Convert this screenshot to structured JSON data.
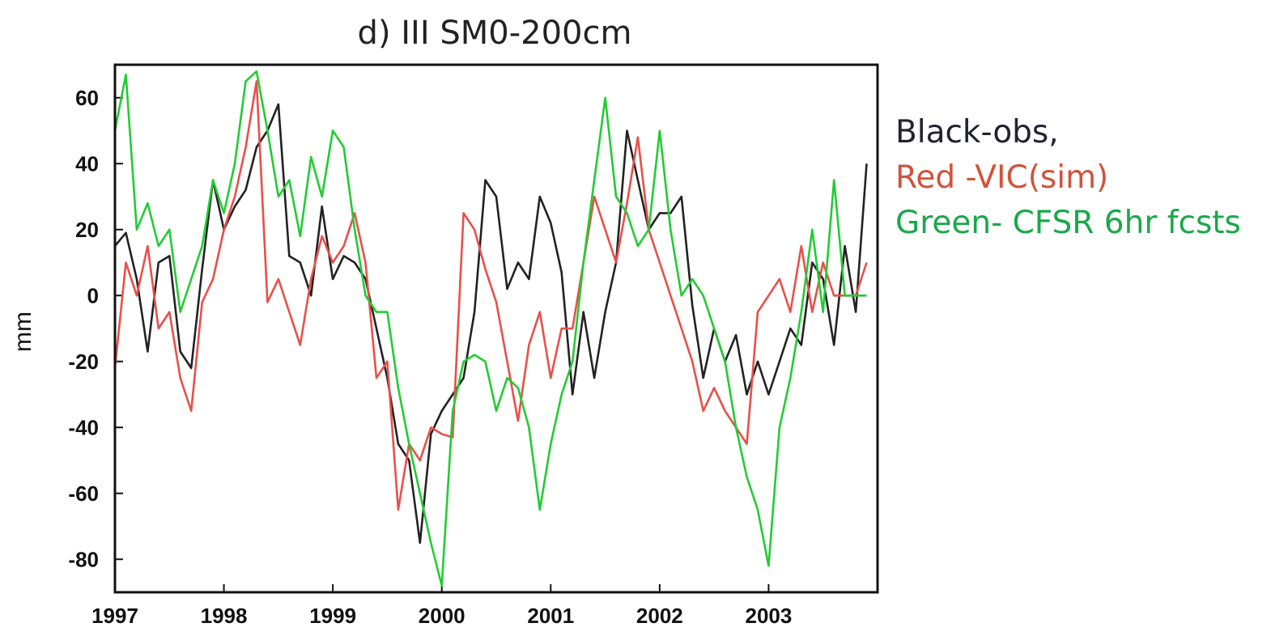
{
  "chart_data": {
    "type": "line",
    "title": "d) III SM0-200cm",
    "ylabel": "mm",
    "xlabel": "",
    "xlim": [
      1997,
      2004
    ],
    "ylim": [
      -90,
      70
    ],
    "x_ticks": [
      "1997",
      "1998",
      "1999",
      "2000",
      "2001",
      "2002",
      "2003"
    ],
    "y_ticks": [
      "60",
      "40",
      "20",
      "0",
      "-20",
      "-40",
      "-60",
      "-80"
    ],
    "grid": false,
    "legend_entries": [
      {
        "label": "Black-obs,",
        "color": "#222233"
      },
      {
        "label": "Red -VIC(sim)",
        "color": "#d0533c"
      },
      {
        "label": "Green- CFSR 6hr fcsts",
        "color": "#19a84a"
      }
    ],
    "series": [
      {
        "color": "#222222",
        "x": [
          1997.0,
          1997.1,
          1997.2,
          1997.3,
          1997.4,
          1997.5,
          1997.6,
          1997.7,
          1997.8,
          1997.9,
          1998.0,
          1998.1,
          1998.2,
          1998.3,
          1998.4,
          1998.5,
          1998.6,
          1998.7,
          1998.8,
          1998.9,
          1999.0,
          1999.1,
          1999.2,
          1999.3,
          1999.4,
          1999.5,
          1999.6,
          1999.7,
          1999.8,
          1999.9,
          2000.0,
          2000.1,
          2000.2,
          2000.3,
          2000.4,
          2000.5,
          2000.6,
          2000.7,
          2000.8,
          2000.9,
          2001.0,
          2001.1,
          2001.2,
          2001.3,
          2001.4,
          2001.5,
          2001.6,
          2001.7,
          2001.8,
          2001.9,
          2002.0,
          2002.1,
          2002.2,
          2002.3,
          2002.4,
          2002.5,
          2002.6,
          2002.7,
          2002.8,
          2002.9,
          2003.0,
          2003.1,
          2003.2,
          2003.3,
          2003.4,
          2003.5,
          2003.6,
          2003.7,
          2003.8,
          2003.9
        ],
        "values": [
          15,
          19,
          5,
          -17,
          10,
          12,
          -17,
          -22,
          8,
          35,
          20,
          27,
          32,
          45,
          50,
          58,
          12,
          10,
          0,
          27,
          5,
          12,
          10,
          5,
          -10,
          -25,
          -45,
          -50,
          -75,
          -42,
          -35,
          -30,
          -25,
          -5,
          35,
          30,
          2,
          10,
          5,
          30,
          22,
          7,
          -30,
          -5,
          -25,
          -5,
          10,
          50,
          35,
          20,
          25,
          25,
          30,
          -3,
          -25,
          -10,
          -20,
          -12,
          -30,
          -20,
          -30,
          -20,
          -10,
          -15,
          10,
          5,
          -15,
          15,
          -5,
          40
        ]
      },
      {
        "color": "#e8504a",
        "x": [
          1997.0,
          1997.1,
          1997.2,
          1997.3,
          1997.4,
          1997.5,
          1997.6,
          1997.7,
          1997.8,
          1997.9,
          1998.0,
          1998.1,
          1998.2,
          1998.3,
          1998.4,
          1998.5,
          1998.6,
          1998.7,
          1998.8,
          1998.9,
          1999.0,
          1999.1,
          1999.2,
          1999.3,
          1999.4,
          1999.5,
          1999.6,
          1999.7,
          1999.8,
          1999.9,
          2000.0,
          2000.1,
          2000.2,
          2000.3,
          2000.4,
          2000.5,
          2000.6,
          2000.7,
          2000.8,
          2000.9,
          2001.0,
          2001.1,
          2001.2,
          2001.3,
          2001.4,
          2001.5,
          2001.6,
          2001.7,
          2001.8,
          2001.9,
          2002.0,
          2002.1,
          2002.2,
          2002.3,
          2002.4,
          2002.5,
          2002.6,
          2002.7,
          2002.8,
          2002.9,
          2003.0,
          2003.1,
          2003.2,
          2003.3,
          2003.4,
          2003.5,
          2003.6,
          2003.7,
          2003.8,
          2003.9
        ],
        "values": [
          -22,
          10,
          0,
          15,
          -10,
          -5,
          -25,
          -35,
          -2,
          5,
          20,
          30,
          45,
          65,
          -2,
          5,
          -5,
          -15,
          5,
          18,
          10,
          15,
          25,
          10,
          -25,
          -20,
          -65,
          -45,
          -50,
          -40,
          -42,
          -43,
          25,
          20,
          8,
          -2,
          -20,
          -38,
          -15,
          -5,
          -25,
          -10,
          -10,
          10,
          30,
          20,
          10,
          28,
          48,
          20,
          10,
          0,
          -10,
          -20,
          -35,
          -28,
          -35,
          -40,
          -45,
          -5,
          0,
          5,
          -5,
          15,
          -5,
          10,
          0,
          0,
          0,
          10
        ]
      },
      {
        "color": "#22cc33",
        "x": [
          1997.0,
          1997.1,
          1997.2,
          1997.3,
          1997.4,
          1997.5,
          1997.6,
          1997.7,
          1997.8,
          1997.9,
          1998.0,
          1998.1,
          1998.2,
          1998.3,
          1998.4,
          1998.5,
          1998.6,
          1998.7,
          1998.8,
          1998.9,
          1999.0,
          1999.1,
          1999.2,
          1999.3,
          1999.4,
          1999.5,
          1999.6,
          1999.7,
          1999.8,
          1999.9,
          2000.0,
          2000.1,
          2000.2,
          2000.3,
          2000.4,
          2000.5,
          2000.6,
          2000.7,
          2000.8,
          2000.9,
          2001.0,
          2001.1,
          2001.2,
          2001.3,
          2001.4,
          2001.5,
          2001.6,
          2001.7,
          2001.8,
          2001.9,
          2002.0,
          2002.1,
          2002.2,
          2002.3,
          2002.4,
          2002.5,
          2002.6,
          2002.7,
          2002.8,
          2002.9,
          2003.0,
          2003.1,
          2003.2,
          2003.3,
          2003.4,
          2003.5,
          2003.6,
          2003.7,
          2003.8,
          2003.9
        ],
        "values": [
          50,
          67,
          20,
          28,
          15,
          20,
          -5,
          5,
          15,
          35,
          25,
          40,
          65,
          68,
          50,
          30,
          35,
          18,
          42,
          30,
          50,
          45,
          20,
          0,
          -5,
          -5,
          -28,
          -45,
          -60,
          -75,
          -88,
          -35,
          -20,
          -18,
          -20,
          -35,
          -25,
          -28,
          -40,
          -65,
          -45,
          -30,
          -20,
          10,
          35,
          60,
          30,
          25,
          15,
          20,
          50,
          20,
          0,
          5,
          0,
          -10,
          -20,
          -40,
          -55,
          -65,
          -82,
          -40,
          -25,
          -5,
          20,
          -5,
          35,
          0,
          0,
          0
        ]
      }
    ]
  }
}
